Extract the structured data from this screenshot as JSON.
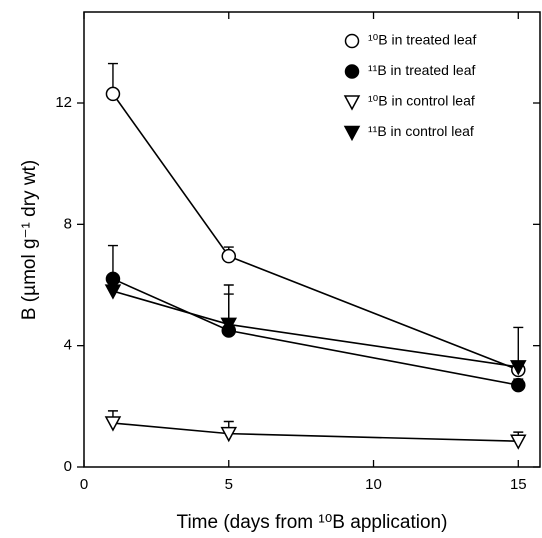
{
  "chart_data": {
    "type": "line",
    "x_label": "Time (days from ¹⁰B application)",
    "y_label": "B (µmol g⁻¹ dry wt)",
    "x": [
      1,
      5,
      15
    ],
    "xlim": [
      0,
      15.75
    ],
    "xticks": [
      0,
      5,
      10,
      15
    ],
    "ylim": [
      0,
      15
    ],
    "yticks": [
      0,
      4,
      8,
      12
    ],
    "legend": "upper right",
    "series": [
      {
        "name": "¹⁰B in treated leaf",
        "color": "#000000",
        "marker": "circle-open",
        "values": [
          12.3,
          6.95,
          3.2
        ],
        "errors": [
          1.0,
          0.3,
          0.2
        ]
      },
      {
        "name": "¹¹B in treated leaf",
        "color": "#000000",
        "marker": "circle-filled",
        "values": [
          6.2,
          4.5,
          2.7
        ],
        "errors": [
          1.1,
          1.5,
          0.2
        ]
      },
      {
        "name": "¹⁰B in control leaf",
        "color": "#000000",
        "marker": "triangle-open",
        "values": [
          1.45,
          1.1,
          0.85
        ],
        "errors": [
          0.4,
          0.4,
          0.3
        ]
      },
      {
        "name": "¹¹B in control leaf",
        "color": "#000000",
        "marker": "triangle-filled",
        "values": [
          5.8,
          4.7,
          3.3
        ],
        "errors": [
          0.3,
          1.0,
          1.3
        ]
      }
    ]
  }
}
